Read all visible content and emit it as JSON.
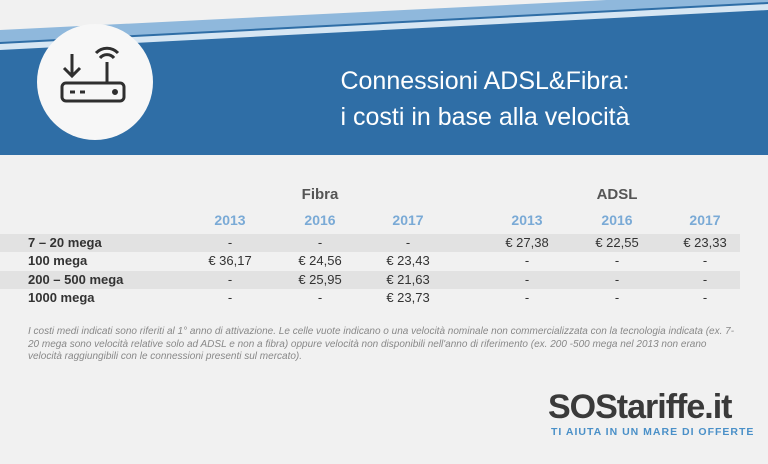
{
  "header": {
    "title_lines": [
      "Connessioni ADSL&Fibra:",
      "i costi in base alla velocità"
    ]
  },
  "table": {
    "groups": [
      {
        "name": "Fibra",
        "years": [
          "2013",
          "2016",
          "2017"
        ]
      },
      {
        "name": "ADSL",
        "years": [
          "2013",
          "2016",
          "2017"
        ]
      }
    ],
    "rows": [
      [
        "7 – 20 mega",
        "-",
        "-",
        "-",
        "€ 27,38",
        "€ 22,55",
        "€ 23,33"
      ],
      [
        "100 mega",
        "€ 36,17",
        "€ 24,56",
        "€ 23,43",
        "-",
        "-",
        "-"
      ],
      [
        "200 – 500 mega",
        "-",
        "€ 25,95",
        "€ 21,63",
        "-",
        "-",
        "-"
      ],
      [
        "1000 mega",
        "-",
        "-",
        "€ 23,73",
        "-",
        "-",
        "-"
      ]
    ]
  },
  "footnote": "I costi medi indicati sono riferiti al 1° anno di attivazione. Le celle vuote indicano o una velocità nominale non commercializzata con la tecnologia indicata (ex. 7-20 mega sono velocità relative solo ad ADSL e non a fibra) oppure velocità non disponibili nell'anno di riferimento (ex. 200 -500 mega nel 2013 non erano velocità raggiungibili con le connessioni presenti sul mercato).",
  "logo": {
    "name": "SOStariffe.it",
    "tagline": "TI AIUTA IN UN MARE DI OFFERTE"
  }
}
